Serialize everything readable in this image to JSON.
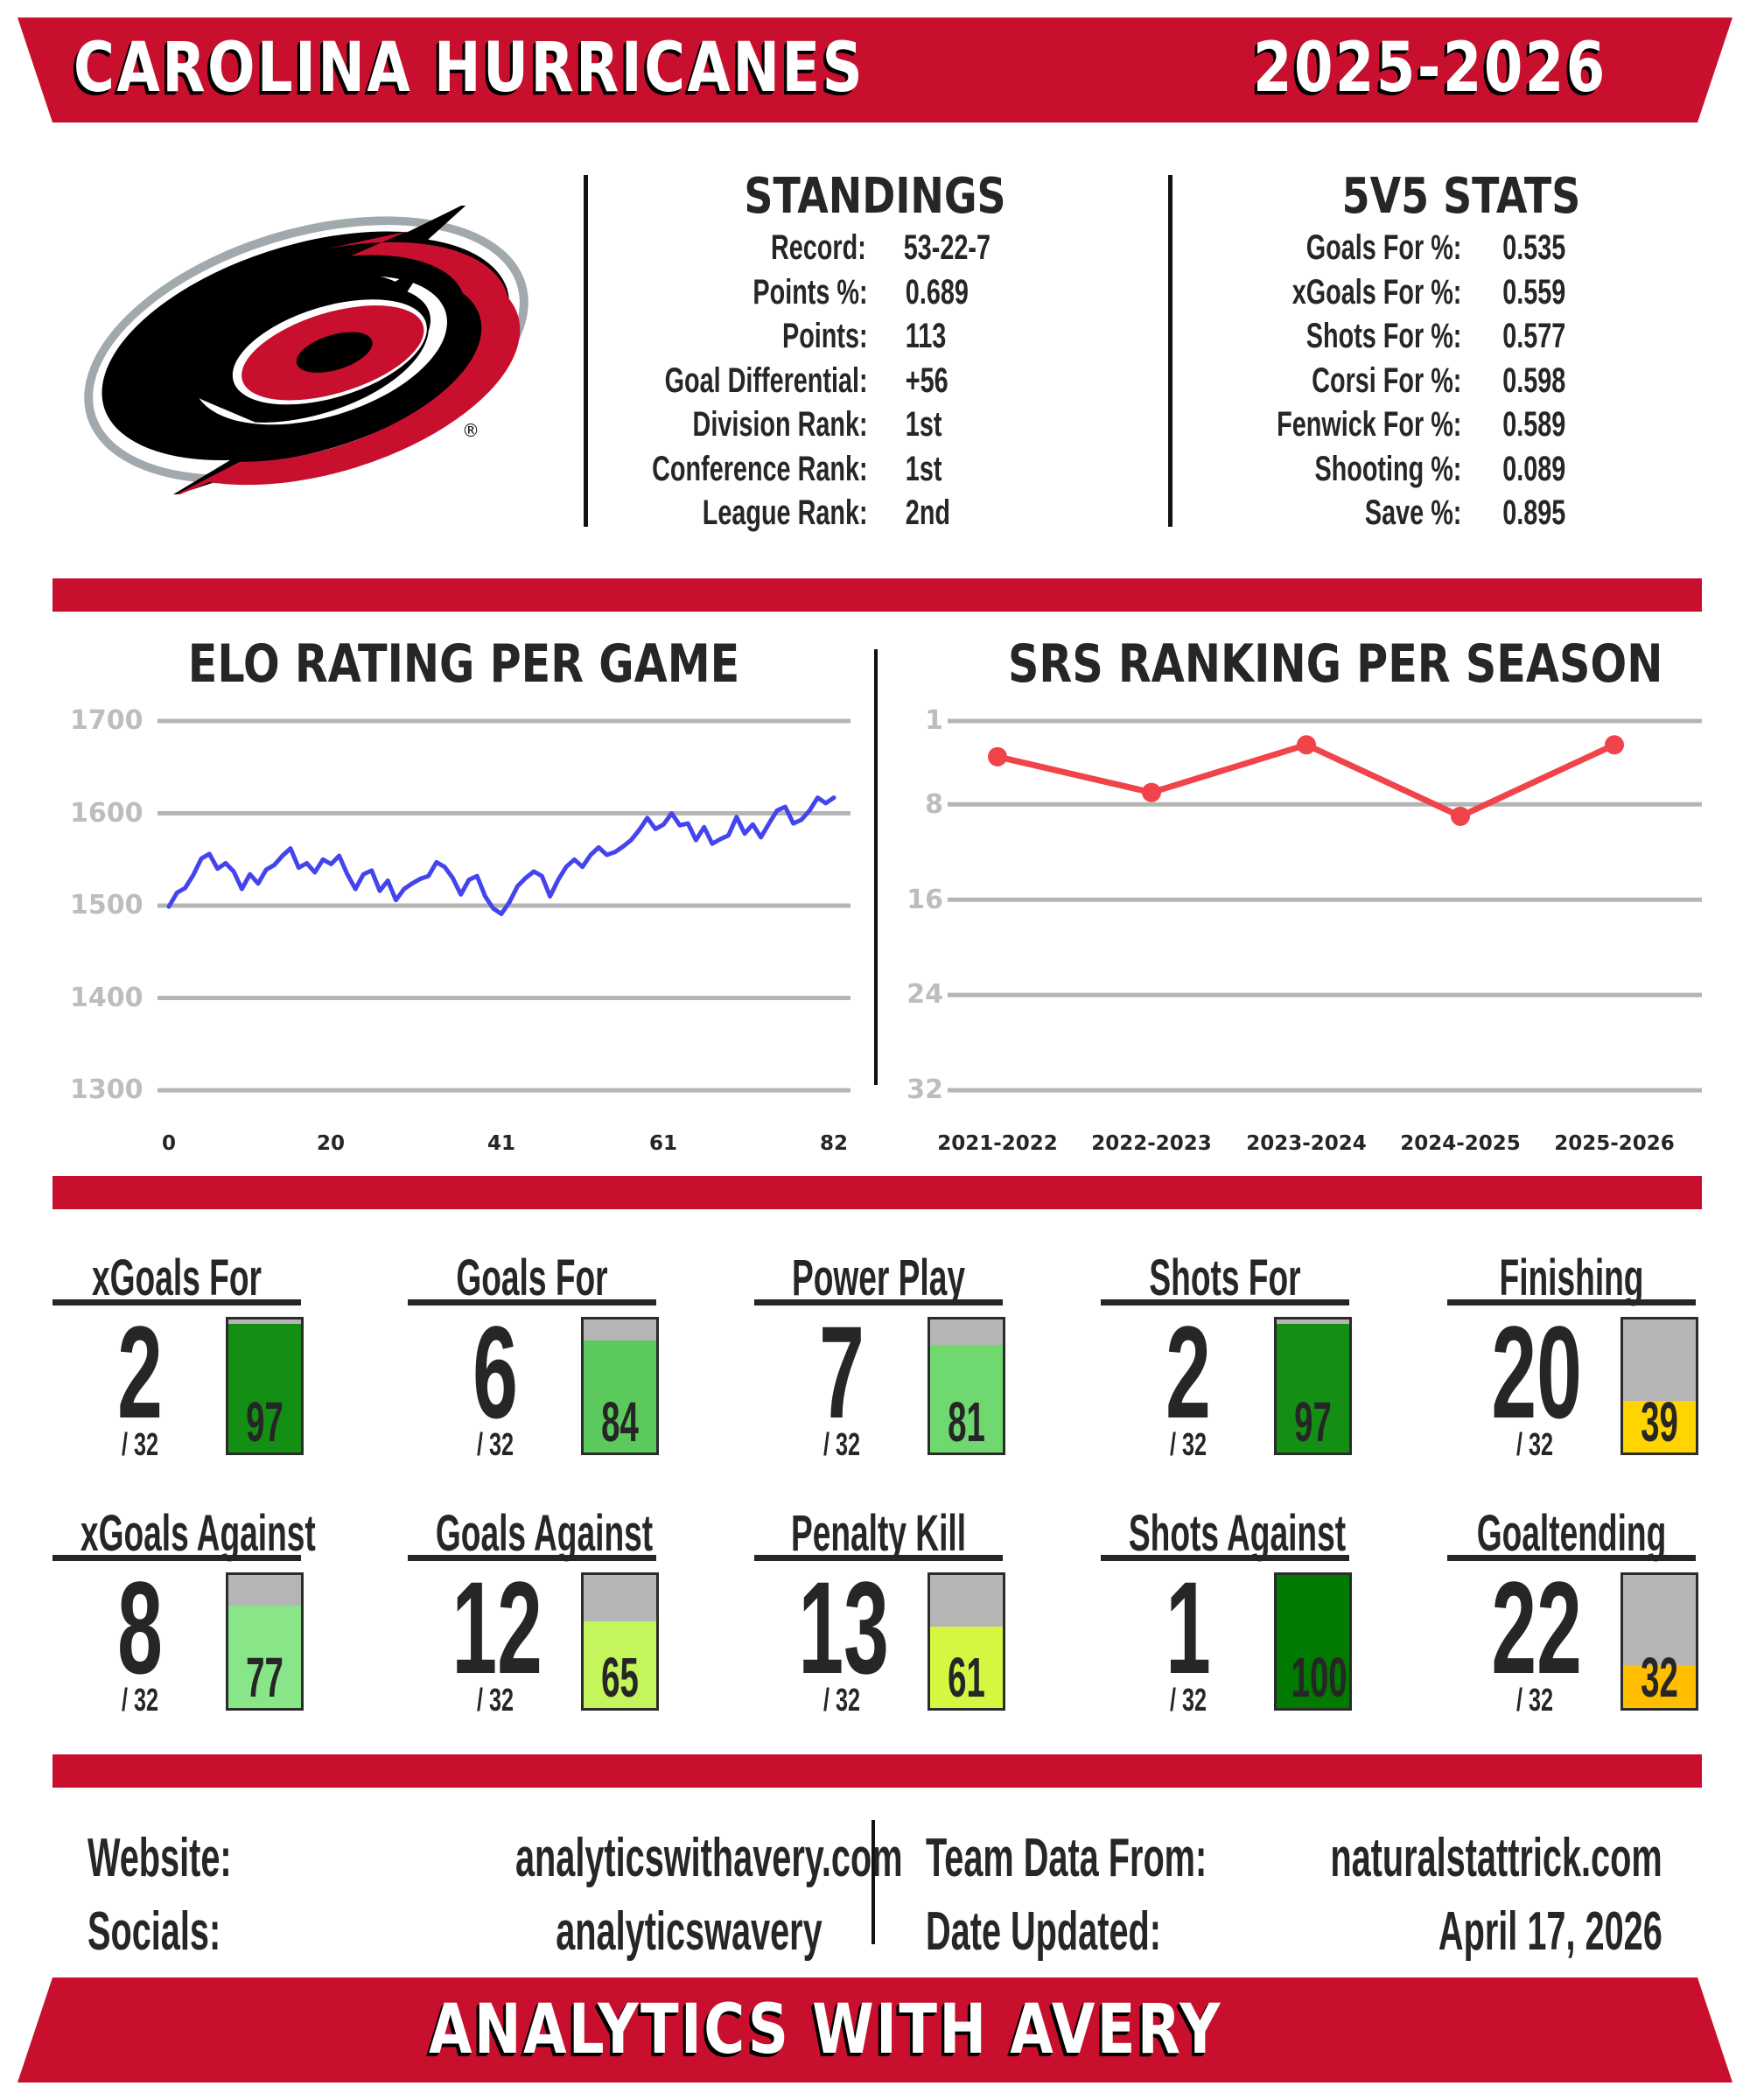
{
  "header": {
    "team": "CAROLINA HURRICANES",
    "season": "2025-2026",
    "brand_color": "#c8102e"
  },
  "logo": {
    "icon": "hurricanes-logo-icon",
    "registered_mark": "®"
  },
  "standings": {
    "title": "STANDINGS",
    "rows": [
      {
        "label": "Record:",
        "value": "53-22-7"
      },
      {
        "label": "Points %:",
        "value": "0.689"
      },
      {
        "label": "Points:",
        "value": "113"
      },
      {
        "label": "Goal Differential:",
        "value": "+56"
      },
      {
        "label": "Division Rank:",
        "value": "1st"
      },
      {
        "label": "Conference Rank:",
        "value": "1st"
      },
      {
        "label": "League Rank:",
        "value": "2nd"
      }
    ]
  },
  "five_v_five": {
    "title": "5V5 STATS",
    "rows": [
      {
        "label": "Goals For %:",
        "value": "0.535"
      },
      {
        "label": "xGoals For %:",
        "value": "0.559"
      },
      {
        "label": "Shots For %:",
        "value": "0.577"
      },
      {
        "label": "Corsi For %:",
        "value": "0.598"
      },
      {
        "label": "Fenwick For %:",
        "value": "0.589"
      },
      {
        "label": "Shooting %:",
        "value": "0.089"
      },
      {
        "label": "Save %:",
        "value": "0.895"
      }
    ]
  },
  "chart_data": [
    {
      "type": "line",
      "title": "ELO RATING PER GAME",
      "xlabel": "",
      "ylabel": "",
      "x_ticks": [
        "0",
        "20",
        "41",
        "61",
        "82"
      ],
      "y_ticks": [
        "1700",
        "1600",
        "1500",
        "1400",
        "1300"
      ],
      "ylim": [
        1300,
        1700
      ],
      "xlim": [
        0,
        82
      ],
      "grid": true,
      "line_color": "#4444ee",
      "x": [
        0,
        1,
        2,
        3,
        4,
        5,
        6,
        7,
        8,
        9,
        10,
        11,
        12,
        13,
        14,
        15,
        16,
        17,
        18,
        19,
        20,
        21,
        22,
        23,
        24,
        25,
        26,
        27,
        28,
        29,
        30,
        31,
        32,
        33,
        34,
        35,
        36,
        37,
        38,
        39,
        40,
        41,
        42,
        43,
        44,
        45,
        46,
        47,
        48,
        49,
        50,
        51,
        52,
        53,
        54,
        55,
        56,
        57,
        58,
        59,
        60,
        61,
        62,
        63,
        64,
        65,
        66,
        67,
        68,
        69,
        70,
        71,
        72,
        73,
        74,
        75,
        76,
        77,
        78,
        79,
        80,
        81,
        82
      ],
      "values": [
        1499,
        1514,
        1519,
        1533,
        1551,
        1556,
        1540,
        1546,
        1537,
        1518,
        1534,
        1524,
        1539,
        1544,
        1554,
        1562,
        1541,
        1546,
        1536,
        1550,
        1545,
        1554,
        1534,
        1518,
        1534,
        1538,
        1516,
        1527,
        1506,
        1518,
        1524,
        1529,
        1532,
        1547,
        1542,
        1530,
        1512,
        1528,
        1532,
        1510,
        1497,
        1491,
        1504,
        1521,
        1530,
        1537,
        1532,
        1510,
        1528,
        1542,
        1550,
        1542,
        1555,
        1563,
        1555,
        1558,
        1564,
        1571,
        1582,
        1595,
        1583,
        1588,
        1600,
        1587,
        1589,
        1571,
        1585,
        1567,
        1572,
        1576,
        1596,
        1578,
        1588,
        1574,
        1589,
        1603,
        1607,
        1589,
        1593,
        1603,
        1617,
        1611,
        1617
      ]
    },
    {
      "type": "line",
      "title": "SRS RANKING PER SEASON",
      "xlabel": "",
      "ylabel": "",
      "categories": [
        "2021-2022",
        "2022-2023",
        "2023-2024",
        "2024-2025",
        "2025-2026"
      ],
      "values": [
        4,
        7,
        3,
        9,
        3
      ],
      "y_ticks": [
        "1",
        "8",
        "16",
        "24",
        "32"
      ],
      "ylim": [
        32,
        1
      ],
      "y_inverted": true,
      "grid": true,
      "line_color": "#f0434a",
      "markers": true
    }
  ],
  "metrics": {
    "of_label": "/ 32",
    "cards": [
      {
        "title": "xGoals For",
        "rank": "2",
        "pct": 97,
        "color": "#138f13"
      },
      {
        "title": "Goals For",
        "rank": "6",
        "pct": 84,
        "color": "#5cc95c"
      },
      {
        "title": "Power Play",
        "rank": "7",
        "pct": 81,
        "color": "#6fd86f"
      },
      {
        "title": "Shots For",
        "rank": "2",
        "pct": 97,
        "color": "#138f13"
      },
      {
        "title": "Finishing",
        "rank": "20",
        "pct": 39,
        "color": "#ffd400"
      },
      {
        "title": "xGoals Against",
        "rank": "8",
        "pct": 77,
        "color": "#88e688"
      },
      {
        "title": "Goals Against",
        "rank": "12",
        "pct": 65,
        "color": "#c4f55a"
      },
      {
        "title": "Penalty Kill",
        "rank": "13",
        "pct": 61,
        "color": "#d4f842"
      },
      {
        "title": "Shots Against",
        "rank": "1",
        "pct": 100,
        "color": "#007a00"
      },
      {
        "title": "Goaltending",
        "rank": "22",
        "pct": 32,
        "color": "#ffbf00"
      }
    ]
  },
  "info": {
    "website_label": "Website:",
    "website_value": "analyticswithavery.com",
    "socials_label": "Socials:",
    "socials_value": "analyticswavery",
    "source_label": "Team Data From:",
    "source_value": "naturalstattrick.com",
    "updated_label": "Date Updated:",
    "updated_value": "April 17, 2026"
  },
  "footer": {
    "brand": "ANALYTICS WITH AVERY"
  }
}
